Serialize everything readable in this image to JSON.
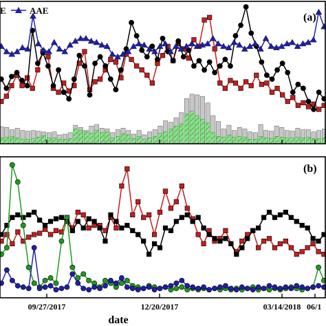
{
  "chart_data": [
    {
      "type": "bar+line",
      "panel_label": "(a)",
      "legend": {
        "placement": "top-left",
        "entries": [
          "E",
          "AAE"
        ]
      },
      "series": [
        {
          "name": "AAE",
          "kind": "line",
          "color": "#1f1fa8",
          "marker": "triangle",
          "values": [
            0.7,
            0.66,
            0.64,
            0.66,
            0.69,
            0.68,
            0.93,
            0.72,
            0.67,
            0.66,
            0.73,
            0.68,
            0.66,
            0.71,
            0.74,
            0.76,
            0.76,
            0.74,
            0.73,
            0.71,
            0.7,
            0.64,
            0.62,
            0.64,
            0.66,
            0.7,
            0.72,
            0.71,
            0.68,
            0.66,
            0.7,
            0.72,
            0.66,
            0.7,
            0.68,
            0.7,
            0.72,
            0.7,
            0.71,
            0.72,
            0.76,
            0.72,
            0.7,
            0.69,
            0.73,
            0.71,
            0.68,
            0.7,
            0.72,
            0.68,
            0.76,
            0.7,
            0.69,
            0.7,
            0.72,
            0.73,
            0.7,
            0.72,
            0.73,
            0.75,
            0.96,
            0.85
          ]
        },
        {
          "name": "",
          "kind": "line",
          "color": "#000000",
          "marker": "circle",
          "values": [
            0.45,
            0.38,
            0.47,
            0.5,
            0.44,
            0.4,
            0.82,
            0.57,
            0.65,
            0.55,
            0.4,
            0.52,
            0.35,
            0.3,
            0.45,
            0.63,
            0.55,
            0.33,
            0.57,
            0.62,
            0.55,
            0.45,
            0.37,
            0.52,
            0.68,
            0.88,
            0.78,
            0.67,
            0.62,
            0.7,
            0.6,
            0.76,
            0.66,
            0.59,
            0.74,
            0.62,
            0.67,
            0.55,
            0.59,
            0.52,
            0.58,
            0.5,
            0.55,
            0.6,
            0.55,
            0.78,
            0.86,
            1.0,
            0.8,
            0.7,
            0.58,
            0.48,
            0.45,
            0.52,
            0.57,
            0.5,
            0.35,
            0.41,
            0.38,
            0.28,
            0.22,
            0.35,
            0.3
          ]
        },
        {
          "name": "",
          "kind": "line",
          "color": "#c41e1e",
          "marker": "square",
          "values": [
            0.28,
            0.32,
            0.4,
            0.48,
            0.4,
            0.46,
            0.38,
            0.52,
            0.66,
            0.62,
            0.38,
            0.35,
            0.42,
            0.36,
            0.4,
            0.57,
            0.66,
            0.37,
            0.43,
            0.45,
            0.52,
            0.6,
            0.58,
            0.46,
            0.64,
            0.6,
            0.55,
            0.52,
            0.48,
            0.42,
            0.57,
            0.63,
            0.7,
            0.59,
            0.72,
            0.68,
            0.61,
            0.75,
            0.7,
            0.9,
            0.92,
            0.68,
            0.42,
            0.38,
            0.44,
            0.42,
            0.38,
            0.43,
            0.4,
            0.48,
            0.41,
            0.42,
            0.35,
            0.38,
            0.33,
            0.28,
            0.31,
            0.25,
            0.27,
            0.24,
            0.26,
            0.22,
            0.25
          ]
        },
        {
          "name": "",
          "kind": "bar",
          "color": "#c8c8c8",
          "values": [
            0.23,
            0.22,
            0.19,
            0.21,
            0.18,
            0.17,
            0.18,
            0.17,
            0.16,
            0.15,
            0.16,
            0.12,
            0.13,
            0.15,
            0.25,
            0.22,
            0.18,
            0.24,
            0.26,
            0.21,
            0.2,
            0.15,
            0.19,
            0.21,
            0.18,
            0.13,
            0.18,
            0.12,
            0.16,
            0.19,
            0.24,
            0.31,
            0.29,
            0.35,
            0.42,
            0.61,
            0.67,
            0.66,
            0.64,
            0.55,
            0.38,
            0.3,
            0.2,
            0.25,
            0.18,
            0.22,
            0.2,
            0.16,
            0.15,
            0.26,
            0.18,
            0.17,
            0.24,
            0.22,
            0.18,
            0.17,
            0.21,
            0.19,
            0.19,
            0.16,
            0.18,
            0.2
          ]
        },
        {
          "name": "",
          "kind": "bar",
          "color": "#5fd15f",
          "values": [
            0.08,
            0.09,
            0.1,
            0.08,
            0.06,
            0.06,
            0.07,
            0.09,
            0.11,
            0.08,
            0.08,
            0.06,
            0.06,
            0.07,
            0.2,
            0.18,
            0.16,
            0.14,
            0.18,
            0.15,
            0.16,
            0.08,
            0.1,
            0.14,
            0.12,
            0.07,
            0.1,
            0.06,
            0.08,
            0.1,
            0.14,
            0.16,
            0.2,
            0.24,
            0.27,
            0.4,
            0.44,
            0.38,
            0.33,
            0.28,
            0.15,
            0.1,
            0.09,
            0.12,
            0.09,
            0.1,
            0.09,
            0.06,
            0.06,
            0.1,
            0.08,
            0.07,
            0.1,
            0.09,
            0.08,
            0.08,
            0.09,
            0.08,
            0.09,
            0.07,
            0.07,
            0.08
          ]
        }
      ]
    },
    {
      "type": "line",
      "panel_label": "(b)",
      "xlabel": "date",
      "x_ticks": [
        "09/27/2017",
        "12/20/2017",
        "03/14/2018",
        "06/1"
      ],
      "series": [
        {
          "name": "",
          "color": "#c41e1e",
          "marker": "square",
          "values": [
            0.4,
            0.45,
            0.38,
            0.47,
            0.4,
            0.43,
            0.45,
            0.46,
            0.49,
            0.45,
            0.48,
            0.47,
            0.58,
            0.5,
            0.62,
            0.6,
            0.5,
            0.52,
            0.52,
            0.48,
            0.58,
            0.5,
            0.82,
            0.95,
            0.6,
            0.7,
            0.58,
            0.6,
            0.45,
            0.62,
            0.78,
            0.65,
            0.7,
            0.82,
            0.65,
            0.57,
            0.45,
            0.38,
            0.48,
            0.4,
            0.42,
            0.48,
            0.38,
            0.32,
            0.4,
            0.45,
            0.48,
            0.35,
            0.4,
            0.42,
            0.35,
            0.38,
            0.4,
            0.35,
            0.3,
            0.32,
            0.35,
            0.38,
            0.32,
            0.3
          ]
        },
        {
          "name": "",
          "color": "#000000",
          "marker": "square",
          "values": [
            0.45,
            0.52,
            0.58,
            0.6,
            0.58,
            0.6,
            0.62,
            0.56,
            0.52,
            0.55,
            0.57,
            0.58,
            0.55,
            0.48,
            0.55,
            0.5,
            0.57,
            0.55,
            0.5,
            0.4,
            0.6,
            0.55,
            0.5,
            0.52,
            0.48,
            0.45,
            0.4,
            0.3,
            0.38,
            0.35,
            0.5,
            0.48,
            0.55,
            0.58,
            0.6,
            0.55,
            0.58,
            0.5,
            0.45,
            0.42,
            0.4,
            0.42,
            0.38,
            0.3,
            0.35,
            0.42,
            0.48,
            0.5,
            0.58,
            0.62,
            0.58,
            0.6,
            0.62,
            0.58,
            0.55,
            0.52,
            0.5,
            0.42,
            0.4,
            0.45
          ]
        },
        {
          "name": "",
          "color": "#1e9a1e",
          "marker": "circle",
          "values": [
            0.3,
            0.35,
            0.98,
            0.85,
            0.52,
            0.2,
            0.08,
            0.05,
            0.1,
            0.12,
            0.08,
            0.4,
            0.58,
            0.2,
            0.12,
            0.15,
            0.1,
            0.08,
            0.05,
            0.1,
            0.08,
            0.05,
            0.08,
            0.1,
            0.06,
            0.05,
            0.04,
            0.06,
            0.05,
            0.04,
            0.05,
            0.03,
            0.04,
            0.05,
            0.03,
            0.04,
            0.03,
            0.04,
            0.03,
            0.04,
            0.03,
            0.04,
            0.03,
            0.04,
            0.03,
            0.04,
            0.05,
            0.03,
            0.04,
            0.03,
            0.04,
            0.03,
            0.04,
            0.05,
            0.04,
            0.03,
            0.04,
            0.05,
            0.2,
            0.1
          ]
        },
        {
          "name": "",
          "color": "#1f1fa8",
          "marker": "circle",
          "values": [
            0.08,
            0.18,
            0.1,
            0.06,
            0.05,
            0.04,
            0.35,
            0.04,
            0.05,
            0.06,
            0.03,
            0.04,
            0.05,
            0.15,
            0.08,
            0.04,
            0.03,
            0.05,
            0.04,
            0.06,
            0.1,
            0.08,
            0.12,
            0.05,
            0.04,
            0.03,
            0.04,
            0.05,
            0.03,
            0.04,
            0.05,
            0.06,
            0.08,
            0.1,
            0.06,
            0.05,
            0.04,
            0.05,
            0.03,
            0.04,
            0.05,
            0.06,
            0.04,
            0.03,
            0.05,
            0.04,
            0.03,
            0.05,
            0.04,
            0.06,
            0.05,
            0.04,
            0.05,
            0.04,
            0.06,
            0.05,
            0.04,
            0.05,
            0.06,
            0.05
          ]
        }
      ]
    }
  ]
}
